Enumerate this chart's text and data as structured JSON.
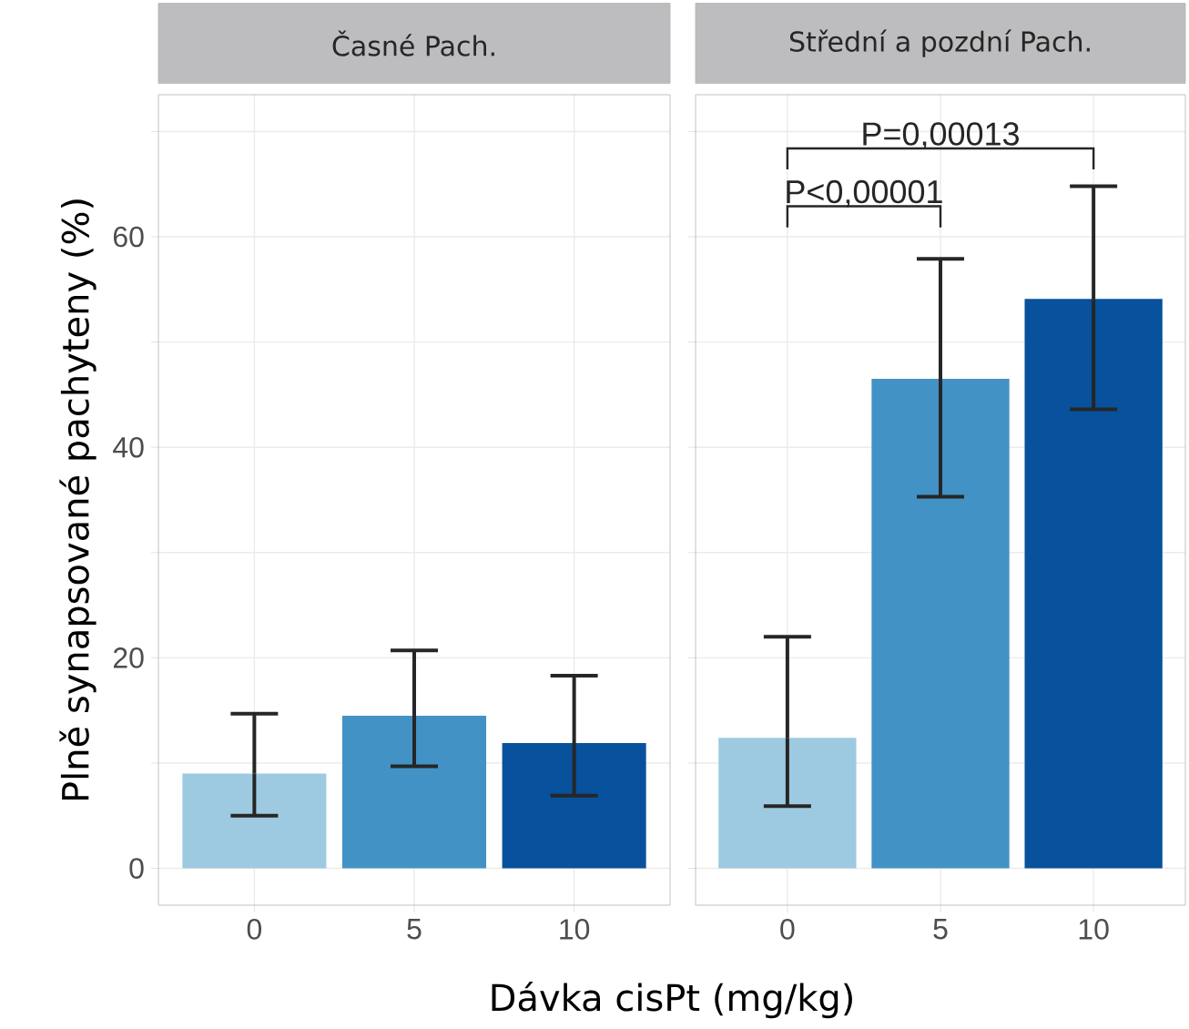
{
  "chart_data": [
    {
      "type": "bar",
      "title": "Časné Pach.",
      "ylabel": "Plně synapsované pachyteny (%)",
      "xlabel": "Dávka cisPt (mg/kg)",
      "categories": [
        "0",
        "5",
        "10"
      ],
      "values": [
        9.0,
        14.5,
        11.9
      ],
      "colors": [
        "#9ecae1",
        "#4292c6",
        "#08519c"
      ],
      "errors": [
        [
          5.0,
          14.7
        ],
        [
          9.7,
          20.7
        ],
        [
          6.9,
          18.3
        ]
      ],
      "ylim": [
        -3.5,
        73.5
      ],
      "yticks": [
        0,
        {
          "value": 10,
          "label": null
        },
        20,
        {
          "value": 30,
          "label": null
        },
        40,
        {
          "value": 50,
          "label": null
        },
        60,
        {
          "value": 70,
          "label": null
        }
      ],
      "grid": true
    },
    {
      "type": "bar",
      "title": "Střední a pozdní Pach.",
      "categories": [
        "0",
        "5",
        "10"
      ],
      "values": [
        12.4,
        46.5,
        54.1
      ],
      "colors": [
        "#9ecae1",
        "#4292c6",
        "#08519c"
      ],
      "errors": [
        [
          5.9,
          22.0
        ],
        [
          35.3,
          57.9
        ],
        [
          43.6,
          64.8
        ]
      ],
      "ylim": [
        -3.5,
        73.5
      ],
      "yticks": [
        0,
        {
          "value": 10,
          "label": null
        },
        20,
        {
          "value": 30,
          "label": null
        },
        40,
        {
          "value": 50,
          "label": null
        },
        60,
        {
          "value": 70,
          "label": null
        }
      ],
      "grid": true,
      "tick_labels": "x",
      "annotations": [
        "P<0,00001",
        "P=0,00013"
      ]
    }
  ]
}
